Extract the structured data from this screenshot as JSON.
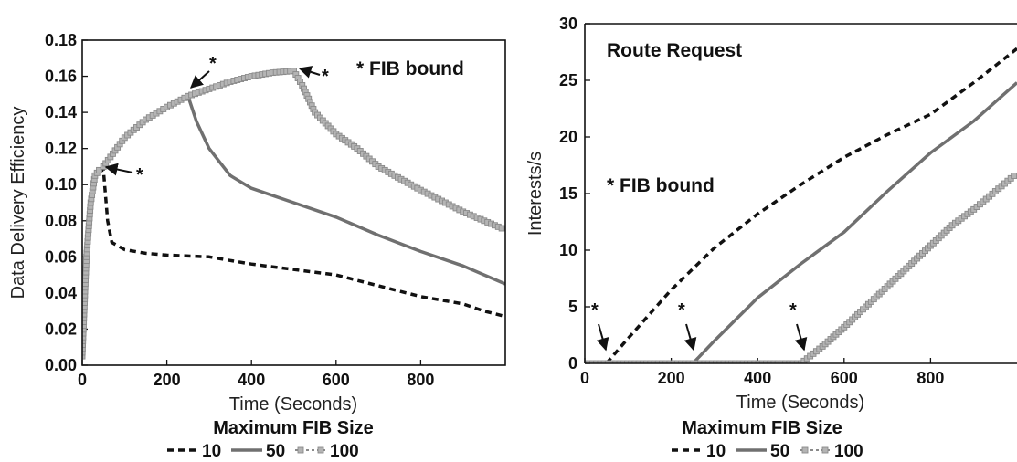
{
  "colors": {
    "s10": "#111111",
    "s50": "#707070",
    "s100": "#8a8a8a",
    "marker": "#b4b4b4"
  },
  "chart_data": [
    {
      "type": "line",
      "xlabel": "Time (Seconds)",
      "ylabel": "Data Delivery Efficiency",
      "xlim": [
        0,
        1000
      ],
      "ylim": [
        0,
        0.18
      ],
      "x_ticks": [
        0,
        200,
        400,
        600,
        800
      ],
      "y_ticks": [
        "0.00",
        "0.02",
        "0.04",
        "0.06",
        "0.08",
        "0.10",
        "0.12",
        "0.14",
        "0.16",
        "0.18"
      ],
      "grid": false,
      "annotation": "* FIB bound",
      "star_label": "*",
      "legend": {
        "title": "Maximum FIB Size",
        "placement": "bottom",
        "labels": [
          "10",
          "50",
          "100"
        ]
      },
      "series": [
        {
          "name": "10",
          "style": "dashed",
          "x": [
            0,
            10,
            20,
            30,
            40,
            50,
            60,
            70,
            100,
            150,
            200,
            300,
            350,
            400,
            500,
            600,
            700,
            800,
            900,
            950,
            1000
          ],
          "y": [
            0.005,
            0.06,
            0.09,
            0.105,
            0.108,
            0.108,
            0.08,
            0.068,
            0.064,
            0.062,
            0.061,
            0.06,
            0.058,
            0.056,
            0.053,
            0.05,
            0.044,
            0.038,
            0.034,
            0.03,
            0.027
          ]
        },
        {
          "name": "50",
          "style": "solid",
          "x": [
            0,
            10,
            20,
            30,
            40,
            50,
            100,
            150,
            200,
            250,
            270,
            300,
            350,
            400,
            500,
            600,
            700,
            800,
            900,
            1000
          ],
          "y": [
            0.005,
            0.06,
            0.09,
            0.105,
            0.108,
            0.11,
            0.126,
            0.136,
            0.143,
            0.149,
            0.135,
            0.12,
            0.105,
            0.098,
            0.09,
            0.082,
            0.072,
            0.063,
            0.055,
            0.045
          ]
        },
        {
          "name": "100",
          "style": "markers",
          "x": [
            0,
            10,
            20,
            30,
            40,
            50,
            100,
            150,
            200,
            250,
            300,
            350,
            400,
            450,
            500,
            520,
            550,
            600,
            650,
            700,
            800,
            900,
            1000
          ],
          "y": [
            0.005,
            0.06,
            0.09,
            0.105,
            0.108,
            0.11,
            0.126,
            0.136,
            0.143,
            0.149,
            0.153,
            0.157,
            0.16,
            0.162,
            0.163,
            0.155,
            0.14,
            0.128,
            0.12,
            0.11,
            0.097,
            0.085,
            0.075
          ]
        }
      ]
    },
    {
      "type": "line",
      "xlabel": "Time (Seconds)",
      "ylabel": "Interests/s",
      "xlim": [
        0,
        1000
      ],
      "ylim": [
        0,
        30
      ],
      "x_ticks": [
        0,
        200,
        400,
        600,
        800
      ],
      "y_ticks": [
        "0",
        "5",
        "10",
        "15",
        "20",
        "25",
        "30"
      ],
      "grid": false,
      "annotation_top": "Route Request",
      "annotation": "* FIB bound",
      "star_label": "*",
      "legend": {
        "title": "Maximum FIB Size",
        "placement": "bottom",
        "labels": [
          "10",
          "50",
          "100"
        ]
      },
      "series": [
        {
          "name": "10",
          "style": "dashed",
          "x": [
            0,
            50,
            100,
            200,
            300,
            400,
            500,
            600,
            700,
            800,
            900,
            1000
          ],
          "y": [
            0,
            0,
            2.2,
            6.5,
            10.2,
            13.2,
            15.8,
            18.2,
            20.2,
            22.0,
            24.8,
            27.8
          ]
        },
        {
          "name": "50",
          "style": "solid",
          "x": [
            0,
            250,
            300,
            400,
            500,
            600,
            700,
            800,
            900,
            1000
          ],
          "y": [
            0,
            0,
            2.0,
            5.8,
            8.8,
            11.6,
            15.2,
            18.6,
            21.4,
            24.8
          ]
        },
        {
          "name": "100",
          "style": "markers",
          "x": [
            0,
            500,
            550,
            600,
            650,
            700,
            750,
            800,
            850,
            900,
            950,
            1000
          ],
          "y": [
            0,
            0,
            1.5,
            3.2,
            5.0,
            6.8,
            8.6,
            10.4,
            12.2,
            13.6,
            15.2,
            16.8
          ]
        }
      ]
    }
  ]
}
